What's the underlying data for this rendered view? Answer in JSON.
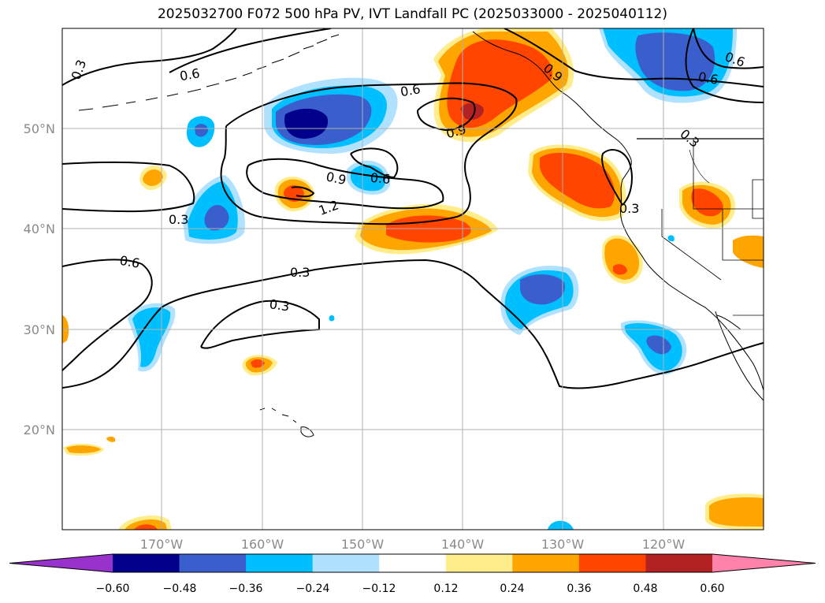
{
  "title": "2025032700 F072 500 hPa PV, IVT Landfall PC (2025033000 - 2025040112)",
  "latitude_labels": [
    "50°N",
    "40°N",
    "30°N",
    "20°N"
  ],
  "longitude_labels": [
    "170°W",
    "160°W",
    "150°W",
    "140°W",
    "130°W",
    "120°W"
  ],
  "contour_labels": [
    "0.3",
    "0.6",
    "0.6",
    "0.6",
    "0.6",
    "0.9",
    "0.9",
    "0.6",
    "1.2",
    "0.9",
    "0.3",
    "0.3",
    "0.6",
    "0.3",
    "0.3",
    "0.3"
  ],
  "colorbar": {
    "colors": [
      "#9932cc",
      "#00008b",
      "#3a5fcd",
      "#00bfff",
      "#b0e2ff",
      "#ffffff",
      "#ffec8b",
      "#ffa500",
      "#ff4500",
      "#b22222",
      "#ff82ab"
    ],
    "tick_labels": [
      "−0.60",
      "−0.48",
      "−0.36",
      "−0.24",
      "−0.12",
      "0.12",
      "0.24",
      "0.36",
      "0.48",
      "0.60"
    ]
  }
}
